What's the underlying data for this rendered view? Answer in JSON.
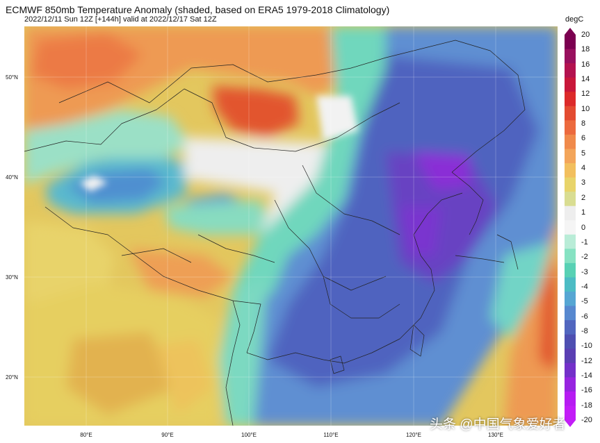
{
  "header": {
    "title": "ECMWF 850mb Temperature Anomaly (shaded, based on ERA5 1979-2018 Climatology)",
    "subtitle": "2022/12/11 Sun 12Z [+144h] valid at 2022/12/17 Sat 12Z"
  },
  "map": {
    "lat_labels": [
      "50°N",
      "40°N",
      "30°N",
      "20°N"
    ],
    "lon_labels": [
      "80°E",
      "90°E",
      "100°E",
      "110°E",
      "120°E",
      "130°E"
    ]
  },
  "colorbar": {
    "unit": "degC",
    "ticks": [
      "20",
      "18",
      "16",
      "14",
      "12",
      "10",
      "8",
      "6",
      "5",
      "4",
      "3",
      "2",
      "1",
      "0",
      "-1",
      "-2",
      "-3",
      "-4",
      "-5",
      "-6",
      "-8",
      "-10",
      "-12",
      "-14",
      "-16",
      "-18",
      "-20"
    ],
    "colors": [
      "#7b0050",
      "#98105e",
      "#b3124f",
      "#c8173a",
      "#dc2a2a",
      "#e34b31",
      "#ec6a3e",
      "#f08a4b",
      "#f3a55a",
      "#f2bf5e",
      "#e8d46a",
      "#d9dd92",
      "#eeeeee",
      "#f5f5f5",
      "#b9ecd7",
      "#86e2c2",
      "#58d1b4",
      "#4cbcc4",
      "#56a6d3",
      "#5788cf",
      "#5166bf",
      "#4e4fb1",
      "#5a3fb3",
      "#7330c9",
      "#9724e0",
      "#b61cf2",
      "#c21df7"
    ]
  },
  "watermark": "头条 @中国气象爱好者"
}
